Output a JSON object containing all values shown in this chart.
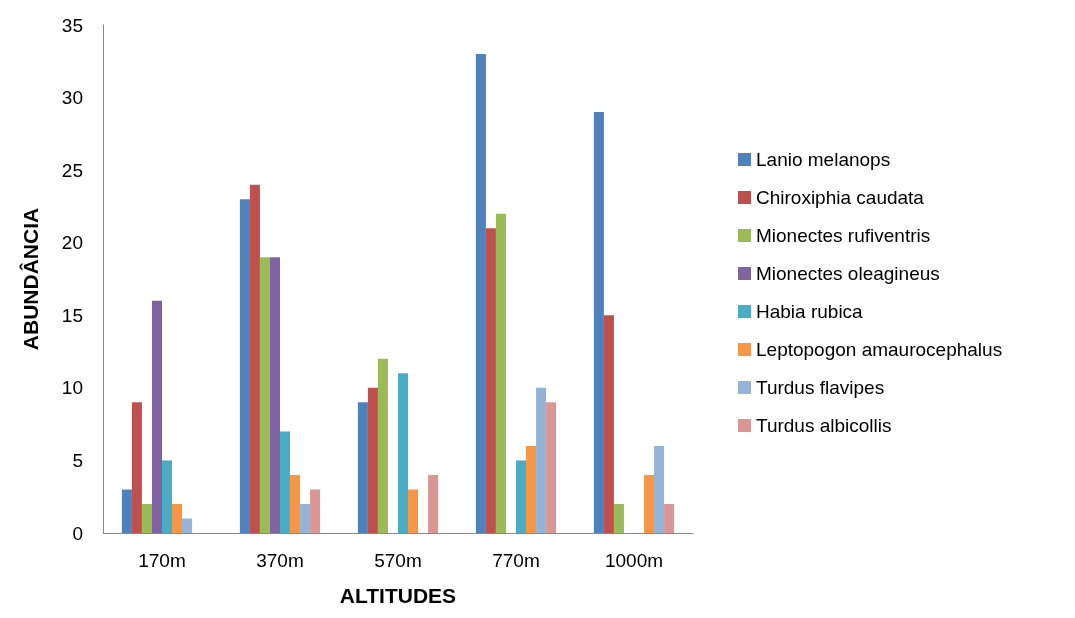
{
  "chart_data": {
    "type": "bar",
    "xlabel": "ALTITUDES",
    "ylabel": "ABUNDÂNCIA",
    "categories": [
      "170m",
      "370m",
      "570m",
      "770m",
      "1000m"
    ],
    "series": [
      {
        "name": "Lanio melanops",
        "color": "#4f81bd",
        "values": [
          3,
          23,
          9,
          33,
          29
        ]
      },
      {
        "name": "Chiroxiphia caudata",
        "color": "#c0504d",
        "values": [
          9,
          24,
          10,
          21,
          15
        ]
      },
      {
        "name": "Mionectes rufiventris",
        "color": "#9bbb59",
        "values": [
          2,
          19,
          12,
          22,
          2
        ]
      },
      {
        "name": "Mionectes oleagineus",
        "color": "#8064a2",
        "values": [
          16,
          19,
          0,
          0,
          0
        ]
      },
      {
        "name": "Habia rubica",
        "color": "#4bacc6",
        "values": [
          5,
          7,
          11,
          5,
          0
        ]
      },
      {
        "name": "Leptopogon amaurocephalus",
        "color": "#f79646",
        "values": [
          2,
          4,
          3,
          6,
          4
        ]
      },
      {
        "name": "Turdus flavipes",
        "color": "#95b3d7",
        "values": [
          1,
          2,
          0,
          10,
          6
        ]
      },
      {
        "name": "Turdus albicollis",
        "color": "#d99694",
        "values": [
          0,
          3,
          4,
          9,
          2
        ]
      }
    ],
    "ylim": [
      0,
      35
    ],
    "yticks": [
      0,
      5,
      10,
      15,
      20,
      25,
      30,
      35
    ],
    "grid": false,
    "legend": "right"
  }
}
